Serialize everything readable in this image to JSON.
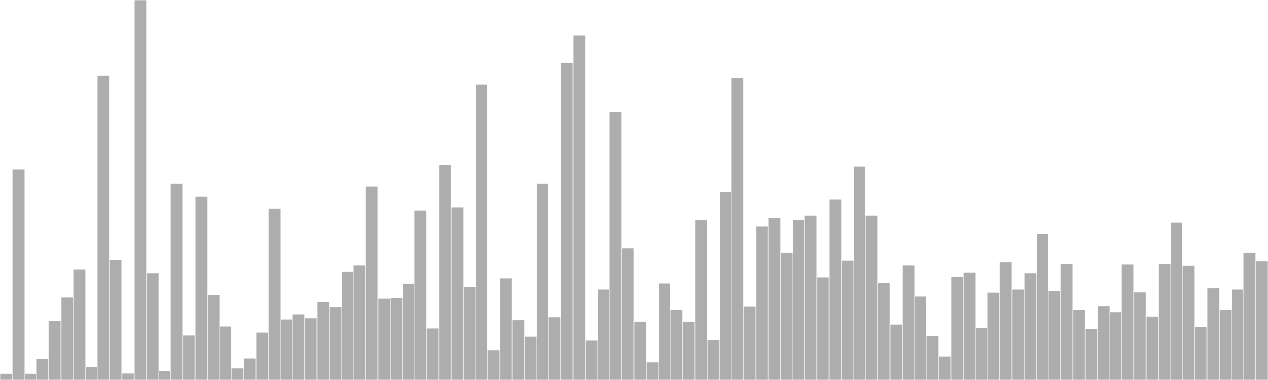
{
  "chart_data": {
    "type": "bar",
    "values": [
      1.8,
      56.5,
      1.8,
      5.8,
      15.8,
      22.3,
      29.7,
      3.5,
      81.7,
      32.3,
      1.9,
      102.0,
      28.7,
      2.4,
      52.8,
      12.1,
      49.2,
      23.0,
      14.4,
      3.2,
      5.9,
      12.9,
      46.0,
      16.3,
      17.6,
      16.6,
      21.1,
      19.6,
      29.2,
      30.8,
      52.0,
      21.8,
      22.0,
      25.8,
      45.6,
      14.0,
      57.8,
      46.3,
      25.0,
      79.4,
      8.1,
      27.4,
      16.2,
      11.6,
      52.8,
      16.8,
      85.3,
      92.6,
      10.6,
      24.4,
      72.0,
      35.5,
      15.6,
      4.9,
      25.9,
      18.9,
      15.6,
      43.0,
      10.9,
      50.6,
      81.1,
      19.7,
      41.2,
      43.5,
      34.3,
      43.0,
      44.1,
      27.6,
      48.4,
      32.0,
      57.3,
      44.1,
      26.2,
      15.0,
      30.8,
      22.5,
      11.9,
      6.3,
      27.7,
      28.8,
      14.1,
      23.5,
      31.7,
      24.4,
      28.7,
      39.2,
      24.0,
      31.3,
      18.9,
      13.8,
      19.8,
      18.3,
      31.0,
      23.6,
      17.1,
      31.2,
      42.2,
      30.7,
      14.3,
      24.7,
      18.8,
      24.4,
      34.3,
      31.9
    ],
    "ylim": [
      0,
      102.0
    ],
    "grid": false,
    "legend": "none",
    "bar_color": "#adadad",
    "edge_color": "#ffffff",
    "background_color": "#ffffff"
  }
}
